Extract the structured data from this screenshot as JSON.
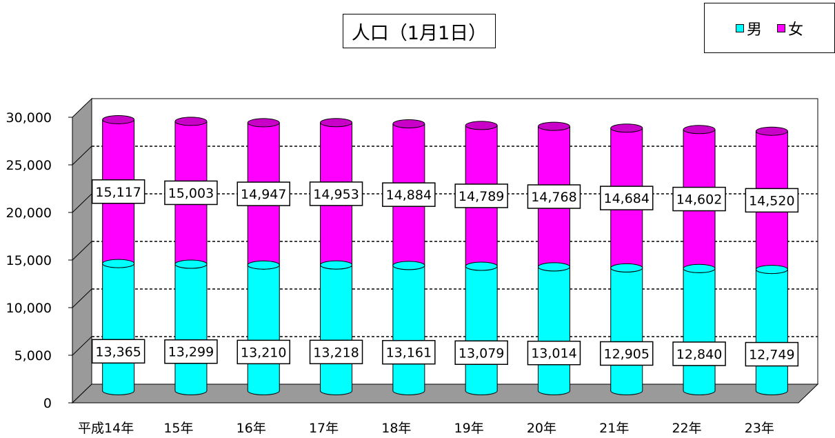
{
  "chart_data": {
    "type": "bar",
    "stacked": true,
    "style": "3d-cylinder",
    "title": "人口（1月1日）",
    "categories": [
      "平成14年",
      "15年",
      "16年",
      "17年",
      "18年",
      "19年",
      "20年",
      "21年",
      "22年",
      "23年"
    ],
    "series": [
      {
        "name": "男",
        "color": "#00FFFF",
        "values": [
          13365,
          13299,
          13210,
          13218,
          13161,
          13079,
          13014,
          12905,
          12840,
          12749
        ],
        "labels": [
          "13,365",
          "13,299",
          "13,210",
          "13,218",
          "13,161",
          "13,079",
          "13,014",
          "12,905",
          "12,840",
          "12,749"
        ]
      },
      {
        "name": "女",
        "color": "#FF00FF",
        "values": [
          15117,
          15003,
          14947,
          14953,
          14884,
          14789,
          14768,
          14684,
          14602,
          14520
        ],
        "labels": [
          "15,117",
          "15,003",
          "14,947",
          "14,953",
          "14,884",
          "14,789",
          "14,768",
          "14,684",
          "14,602",
          "14,520"
        ]
      }
    ],
    "yticks": [
      0,
      5000,
      10000,
      15000,
      20000,
      25000,
      30000
    ],
    "ytick_labels": [
      "0",
      "5,000",
      "10,000",
      "15,000",
      "20,000",
      "25,000",
      "30,000"
    ],
    "ylim": [
      0,
      30000
    ],
    "grid": true,
    "legend_position": "top-right"
  }
}
